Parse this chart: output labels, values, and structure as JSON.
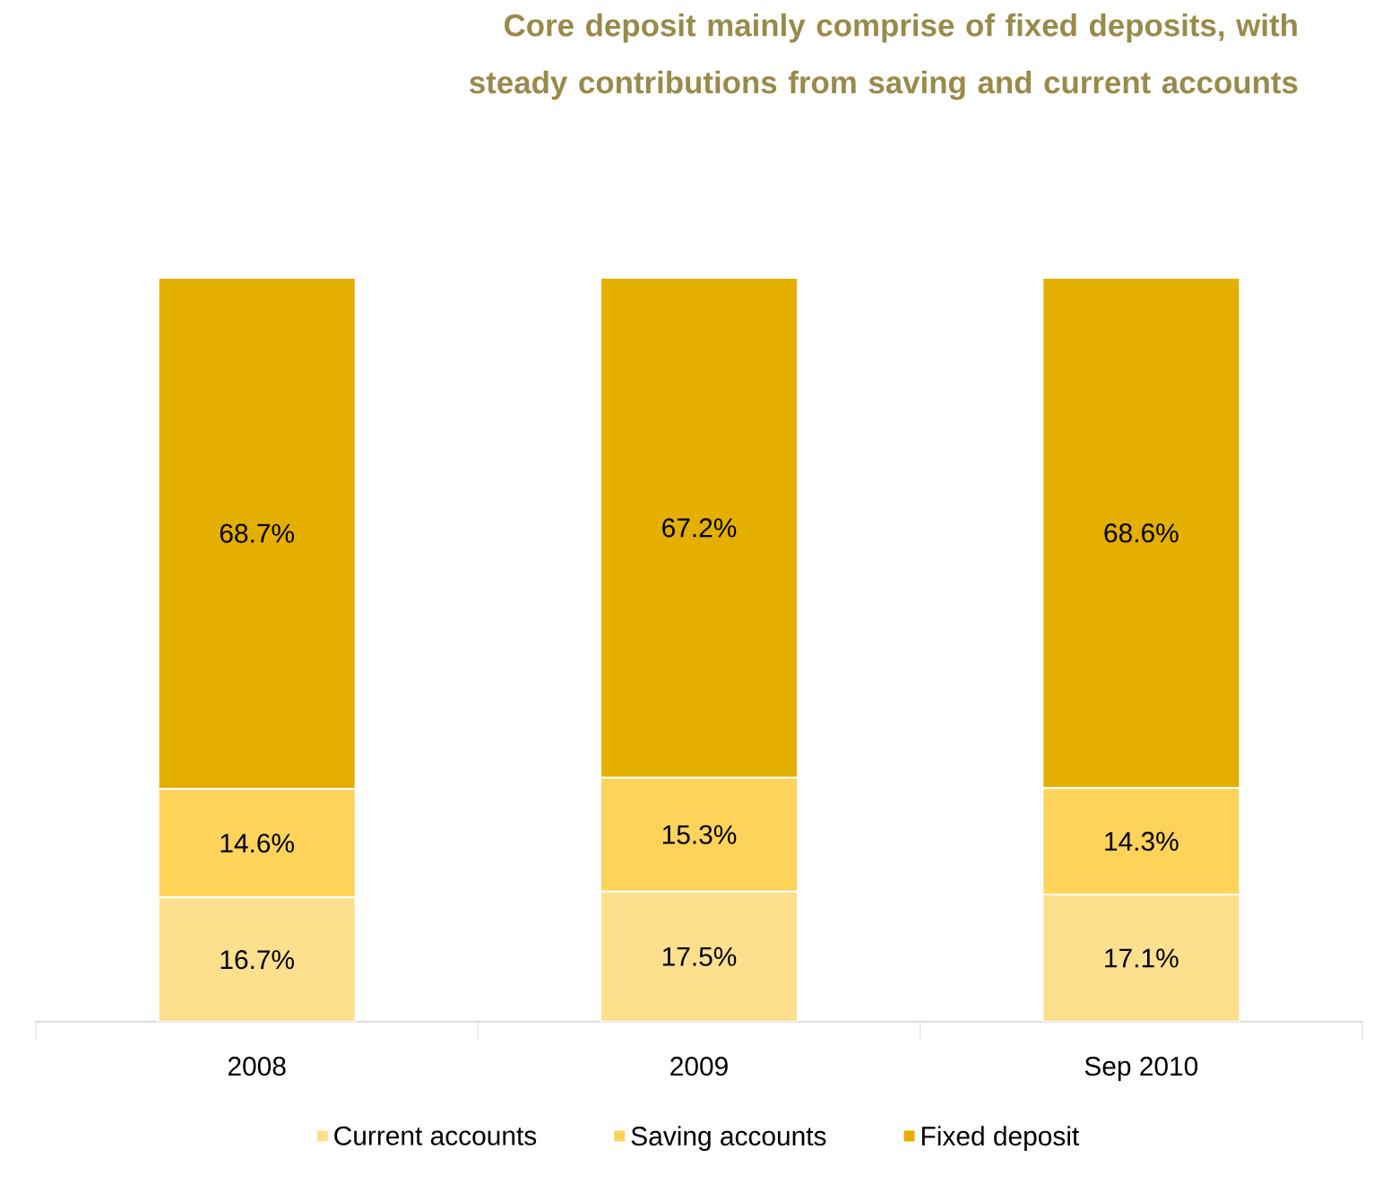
{
  "chart_data": {
    "type": "bar",
    "stacked": true,
    "legend": "bottom",
    "title": "Core deposit mainly comprise of fixed deposits, with steady contributions from saving and current accounts",
    "categories": [
      "2008",
      "2009",
      "Sep 2010"
    ],
    "series": [
      {
        "name": "Current accounts",
        "color": "#fde08e",
        "values": [
          16.7,
          17.5,
          17.1
        ],
        "value_labels": [
          "16.7%",
          "17.5%",
          "17.1%"
        ]
      },
      {
        "name": "Saving accounts",
        "color": "#fdd35a",
        "values": [
          14.6,
          15.3,
          14.3
        ],
        "value_labels": [
          "14.6%",
          "15.3%",
          "14.3%"
        ]
      },
      {
        "name": "Fixed deposit",
        "color": "#e5af00",
        "values": [
          68.7,
          67.2,
          68.6
        ],
        "value_labels": [
          "68.7%",
          "67.2%",
          "68.6%"
        ]
      }
    ]
  }
}
